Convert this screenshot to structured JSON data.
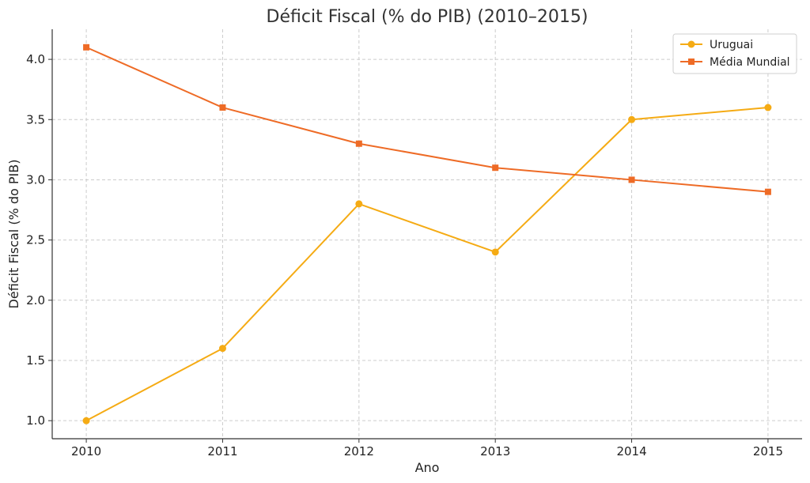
{
  "chart_data": {
    "type": "line",
    "title": "Déficit Fiscal (% do PIB) (2010–2015)",
    "xlabel": "Ano",
    "ylabel": "Déficit Fiscal (% do PIB)",
    "x": [
      2010,
      2011,
      2012,
      2013,
      2014,
      2015
    ],
    "x_tick_labels": [
      "2010",
      "2011",
      "2012",
      "2013",
      "2014",
      "2015"
    ],
    "xlim": [
      2009.75,
      2015.25
    ],
    "ylim": [
      0.85,
      4.25
    ],
    "y_ticks": [
      1.0,
      1.5,
      2.0,
      2.5,
      3.0,
      3.5,
      4.0
    ],
    "y_tick_labels": [
      "1.0",
      "1.5",
      "2.0",
      "2.5",
      "3.0",
      "3.5",
      "4.0"
    ],
    "grid": true,
    "legend_position": "top-right",
    "series": [
      {
        "name": "Uruguai",
        "values": [
          1.0,
          1.6,
          2.8,
          2.4,
          3.5,
          3.6
        ],
        "color": "#f5ab14",
        "marker": "circle"
      },
      {
        "name": "Média Mundial",
        "values": [
          4.1,
          3.6,
          3.3,
          3.1,
          3.0,
          2.9
        ],
        "color": "#ee6b26",
        "marker": "square"
      }
    ]
  }
}
